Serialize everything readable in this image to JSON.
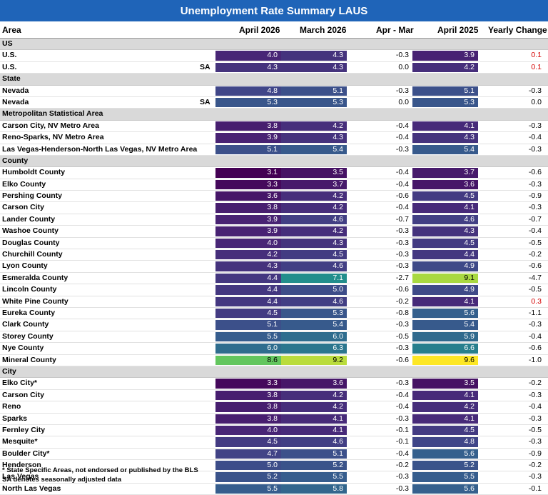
{
  "title": "Unemployment Rate Summary LAUS",
  "headers": {
    "area": "Area",
    "apr26": "April 2026",
    "mar26": "March 2026",
    "diff": "Apr - Mar",
    "apr25": "April 2025",
    "yoy": "Yearly Change"
  },
  "colors": {
    "title_bg": "#1f64b8",
    "section_bg": "#d9d9d9",
    "positive_change": "#d40000",
    "scale": "viridis (low = purple, high = yellow)"
  },
  "sections": [
    {
      "label": "US",
      "rows": [
        {
          "area": "U.S.",
          "sa": "",
          "apr26": "4.0",
          "mar26": "4.3",
          "diff": "-0.3",
          "apr25": "3.9",
          "yoy": "0.1"
        },
        {
          "area": "U.S.",
          "sa": "SA",
          "apr26": "4.3",
          "mar26": "4.3",
          "diff": "0.0",
          "apr25": "4.2",
          "yoy": "0.1"
        }
      ]
    },
    {
      "label": "State",
      "rows": [
        {
          "area": "Nevada",
          "sa": "",
          "apr26": "4.8",
          "mar26": "5.1",
          "diff": "-0.3",
          "apr25": "5.1",
          "yoy": "-0.3"
        },
        {
          "area": "Nevada",
          "sa": "SA",
          "apr26": "5.3",
          "mar26": "5.3",
          "diff": "0.0",
          "apr25": "5.3",
          "yoy": "0.0"
        }
      ]
    },
    {
      "label": "Metropolitan Statistical Area",
      "rows": [
        {
          "area": "Carson City, NV Metro Area",
          "sa": "",
          "apr26": "3.8",
          "mar26": "4.2",
          "diff": "-0.4",
          "apr25": "4.1",
          "yoy": "-0.3"
        },
        {
          "area": "Reno-Sparks, NV Metro Area",
          "sa": "",
          "apr26": "3.9",
          "mar26": "4.3",
          "diff": "-0.4",
          "apr25": "4.3",
          "yoy": "-0.4"
        },
        {
          "area": "Las Vegas-Henderson-North Las Vegas, NV Metro Area",
          "sa": "",
          "apr26": "5.1",
          "mar26": "5.4",
          "diff": "-0.3",
          "apr25": "5.4",
          "yoy": "-0.3"
        }
      ]
    },
    {
      "label": "County",
      "rows": [
        {
          "area": "Humboldt County",
          "sa": "",
          "apr26": "3.1",
          "mar26": "3.5",
          "diff": "-0.4",
          "apr25": "3.7",
          "yoy": "-0.6"
        },
        {
          "area": "Elko County",
          "sa": "",
          "apr26": "3.3",
          "mar26": "3.7",
          "diff": "-0.4",
          "apr25": "3.6",
          "yoy": "-0.3"
        },
        {
          "area": "Pershing County",
          "sa": "",
          "apr26": "3.6",
          "mar26": "4.2",
          "diff": "-0.6",
          "apr25": "4.5",
          "yoy": "-0.9"
        },
        {
          "area": "Carson City",
          "sa": "",
          "apr26": "3.8",
          "mar26": "4.2",
          "diff": "-0.4",
          "apr25": "4.1",
          "yoy": "-0.3"
        },
        {
          "area": "Lander County",
          "sa": "",
          "apr26": "3.9",
          "mar26": "4.6",
          "diff": "-0.7",
          "apr25": "4.6",
          "yoy": "-0.7"
        },
        {
          "area": "Washoe County",
          "sa": "",
          "apr26": "3.9",
          "mar26": "4.2",
          "diff": "-0.3",
          "apr25": "4.3",
          "yoy": "-0.4"
        },
        {
          "area": "Douglas County",
          "sa": "",
          "apr26": "4.0",
          "mar26": "4.3",
          "diff": "-0.3",
          "apr25": "4.5",
          "yoy": "-0.5"
        },
        {
          "area": "Churchill County",
          "sa": "",
          "apr26": "4.2",
          "mar26": "4.5",
          "diff": "-0.3",
          "apr25": "4.4",
          "yoy": "-0.2"
        },
        {
          "area": "Lyon County",
          "sa": "",
          "apr26": "4.3",
          "mar26": "4.6",
          "diff": "-0.3",
          "apr25": "4.9",
          "yoy": "-0.6"
        },
        {
          "area": "Esmeralda County",
          "sa": "",
          "apr26": "4.4",
          "mar26": "7.1",
          "diff": "-2.7",
          "apr25": "9.1",
          "yoy": "-4.7"
        },
        {
          "area": "Lincoln County",
          "sa": "",
          "apr26": "4.4",
          "mar26": "5.0",
          "diff": "-0.6",
          "apr25": "4.9",
          "yoy": "-0.5"
        },
        {
          "area": "White Pine County",
          "sa": "",
          "apr26": "4.4",
          "mar26": "4.6",
          "diff": "-0.2",
          "apr25": "4.1",
          "yoy": "0.3"
        },
        {
          "area": "Eureka County",
          "sa": "",
          "apr26": "4.5",
          "mar26": "5.3",
          "diff": "-0.8",
          "apr25": "5.6",
          "yoy": "-1.1"
        },
        {
          "area": "Clark County",
          "sa": "",
          "apr26": "5.1",
          "mar26": "5.4",
          "diff": "-0.3",
          "apr25": "5.4",
          "yoy": "-0.3"
        },
        {
          "area": "Storey County",
          "sa": "",
          "apr26": "5.5",
          "mar26": "6.0",
          "diff": "-0.5",
          "apr25": "5.9",
          "yoy": "-0.4"
        },
        {
          "area": "Nye County",
          "sa": "",
          "apr26": "6.0",
          "mar26": "6.3",
          "diff": "-0.3",
          "apr25": "6.6",
          "yoy": "-0.6"
        },
        {
          "area": "Mineral County",
          "sa": "",
          "apr26": "8.6",
          "mar26": "9.2",
          "diff": "-0.6",
          "apr25": "9.6",
          "yoy": "-1.0"
        }
      ]
    },
    {
      "label": "City",
      "rows": [
        {
          "area": "Elko City*",
          "sa": "",
          "apr26": "3.3",
          "mar26": "3.6",
          "diff": "-0.3",
          "apr25": "3.5",
          "yoy": "-0.2"
        },
        {
          "area": "Carson City",
          "sa": "",
          "apr26": "3.8",
          "mar26": "4.2",
          "diff": "-0.4",
          "apr25": "4.1",
          "yoy": "-0.3"
        },
        {
          "area": "Reno",
          "sa": "",
          "apr26": "3.8",
          "mar26": "4.2",
          "diff": "-0.4",
          "apr25": "4.2",
          "yoy": "-0.4"
        },
        {
          "area": "Sparks",
          "sa": "",
          "apr26": "3.8",
          "mar26": "4.1",
          "diff": "-0.3",
          "apr25": "4.1",
          "yoy": "-0.3"
        },
        {
          "area": "Fernley City",
          "sa": "",
          "apr26": "4.0",
          "mar26": "4.1",
          "diff": "-0.1",
          "apr25": "4.5",
          "yoy": "-0.5"
        },
        {
          "area": "Mesquite*",
          "sa": "",
          "apr26": "4.5",
          "mar26": "4.6",
          "diff": "-0.1",
          "apr25": "4.8",
          "yoy": "-0.3"
        },
        {
          "area": "Boulder City*",
          "sa": "",
          "apr26": "4.7",
          "mar26": "5.1",
          "diff": "-0.4",
          "apr25": "5.6",
          "yoy": "-0.9"
        },
        {
          "area": "Henderson",
          "sa": "",
          "apr26": "5.0",
          "mar26": "5.2",
          "diff": "-0.2",
          "apr25": "5.2",
          "yoy": "-0.2"
        },
        {
          "area": "Las Vegas",
          "sa": "",
          "apr26": "5.2",
          "mar26": "5.5",
          "diff": "-0.3",
          "apr25": "5.5",
          "yoy": "-0.3"
        },
        {
          "area": "North Las Vegas",
          "sa": "",
          "apr26": "5.5",
          "mar26": "5.8",
          "diff": "-0.3",
          "apr25": "5.6",
          "yoy": "-0.1"
        }
      ]
    }
  ],
  "notes": [
    "* State Specific Areas, not endorsed or published by the BLS",
    "SA denotes seasonally adjusted data"
  ]
}
